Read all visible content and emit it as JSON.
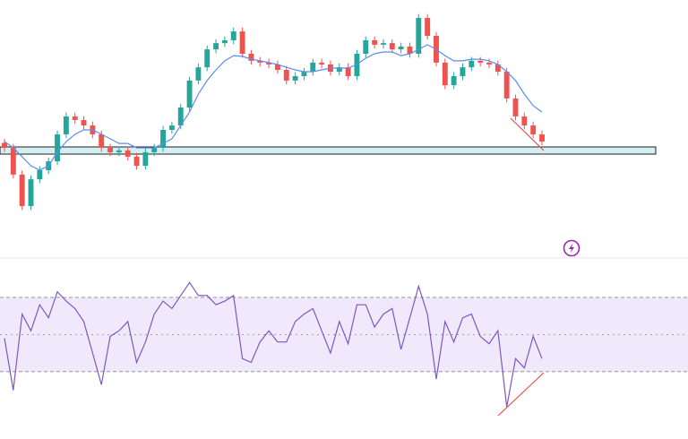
{
  "chart_data": [
    {
      "type": "candlestick",
      "open": [
        45.0,
        43.1,
        32.8,
        20.7,
        31.0,
        34.5,
        37.9,
        48.3,
        55.2,
        53.8,
        51.7,
        48.3,
        43.1,
        41.4,
        42.1,
        39.7,
        36.2,
        41.4,
        43.1,
        50.0,
        51.7,
        58.6,
        69.0,
        74.1,
        81.0,
        83.4,
        84.5,
        87.9,
        79.3,
        76.6,
        75.9,
        75.2,
        73.1,
        69.0,
        70.7,
        72.4,
        75.9,
        75.2,
        72.4,
        74.1,
        70.7,
        79.3,
        84.5,
        82.8,
        83.4,
        81.0,
        82.1,
        79.3,
        93.1,
        86.2,
        75.9,
        67.2,
        70.7,
        74.1,
        76.6,
        75.9,
        75.2,
        72.4,
        62.1,
        55.2,
        51.7,
        48.3
      ],
      "high": [
        46.5,
        44.6,
        34.3,
        32.5,
        36.0,
        39.4,
        49.8,
        56.7,
        56.7,
        55.3,
        53.2,
        49.8,
        44.6,
        43.6,
        43.6,
        41.2,
        42.9,
        44.6,
        51.5,
        53.2,
        60.1,
        70.5,
        75.6,
        82.5,
        84.9,
        86.0,
        89.4,
        89.4,
        80.8,
        78.1,
        77.4,
        76.7,
        74.6,
        72.2,
        73.9,
        77.4,
        77.4,
        76.7,
        75.6,
        75.6,
        80.8,
        86.0,
        86.0,
        84.9,
        84.9,
        83.6,
        83.6,
        94.6,
        94.6,
        87.7,
        77.4,
        72.2,
        75.6,
        78.1,
        78.1,
        77.4,
        76.7,
        73.9,
        63.6,
        56.7,
        53.2,
        49.8
      ],
      "low": [
        41.6,
        31.3,
        19.2,
        19.2,
        29.5,
        33.0,
        36.4,
        46.8,
        52.3,
        50.2,
        46.8,
        41.6,
        39.9,
        39.9,
        38.2,
        34.7,
        34.7,
        39.9,
        41.6,
        48.5,
        50.2,
        57.1,
        67.5,
        72.6,
        79.5,
        81.9,
        83.0,
        77.8,
        75.1,
        74.4,
        73.7,
        71.6,
        67.5,
        67.5,
        69.2,
        70.9,
        73.7,
        70.9,
        70.9,
        69.2,
        69.2,
        77.8,
        81.3,
        81.3,
        79.5,
        79.5,
        77.8,
        77.8,
        84.7,
        74.4,
        65.7,
        65.7,
        69.2,
        72.6,
        74.4,
        73.7,
        70.9,
        60.6,
        53.7,
        50.2,
        46.8,
        44.0
      ],
      "close": [
        43.1,
        32.8,
        20.7,
        31.0,
        34.5,
        37.9,
        48.3,
        55.2,
        53.8,
        51.7,
        48.3,
        43.1,
        41.4,
        42.1,
        39.7,
        36.2,
        41.4,
        43.1,
        50.0,
        51.7,
        58.6,
        69.0,
        74.1,
        81.0,
        83.4,
        84.5,
        87.9,
        79.3,
        76.6,
        75.9,
        75.2,
        73.1,
        69.0,
        70.7,
        72.4,
        75.9,
        75.2,
        72.4,
        74.1,
        70.7,
        79.3,
        84.5,
        82.8,
        83.4,
        81.0,
        82.1,
        79.3,
        93.1,
        86.2,
        75.9,
        67.2,
        70.7,
        74.1,
        76.6,
        75.9,
        75.2,
        72.4,
        62.1,
        55.2,
        51.7,
        48.3,
        45.5
      ],
      "up_color": "#26a69a",
      "down_color": "#ef5350",
      "ma_values": [
        45.5,
        43.1,
        39.7,
        36.2,
        34.5,
        36.2,
        41.4,
        45.5,
        48.3,
        50.0,
        50.0,
        48.3,
        46.6,
        44.8,
        44.8,
        43.1,
        43.1,
        43.1,
        44.8,
        46.6,
        51.7,
        56.9,
        63.8,
        69.0,
        73.1,
        76.6,
        78.6,
        78.3,
        77.2,
        76.6,
        75.9,
        75.2,
        74.1,
        73.1,
        72.4,
        72.4,
        73.1,
        73.8,
        73.8,
        73.8,
        75.2,
        77.6,
        79.3,
        80.0,
        80.0,
        78.6,
        79.3,
        81.0,
        82.8,
        81.0,
        78.6,
        76.6,
        76.6,
        77.2,
        77.2,
        76.6,
        75.2,
        72.4,
        69.0,
        63.8,
        59.3,
        56.9
      ],
      "ma_color": "#5b8def",
      "ylim": [
        0,
        100
      ]
    },
    {
      "type": "line",
      "values": [
        48,
        20,
        61,
        52,
        66,
        59,
        73,
        68,
        64,
        57,
        40,
        23,
        49,
        52,
        57,
        35,
        46,
        61,
        68,
        64,
        71,
        78,
        71,
        71,
        66,
        68,
        71,
        37,
        35,
        46,
        52,
        46,
        46,
        57,
        61,
        64,
        52,
        40,
        57,
        45,
        66,
        66,
        54,
        61,
        64,
        42,
        59,
        76,
        61,
        26,
        57,
        46,
        59,
        61,
        49,
        45,
        52,
        11,
        37,
        32,
        49,
        37
      ],
      "color": "#7e57c2",
      "ylim": [
        0,
        100
      ],
      "yticks": [
        30,
        50,
        70
      ],
      "band": true,
      "band_color": "#efe9fb"
    }
  ]
}
